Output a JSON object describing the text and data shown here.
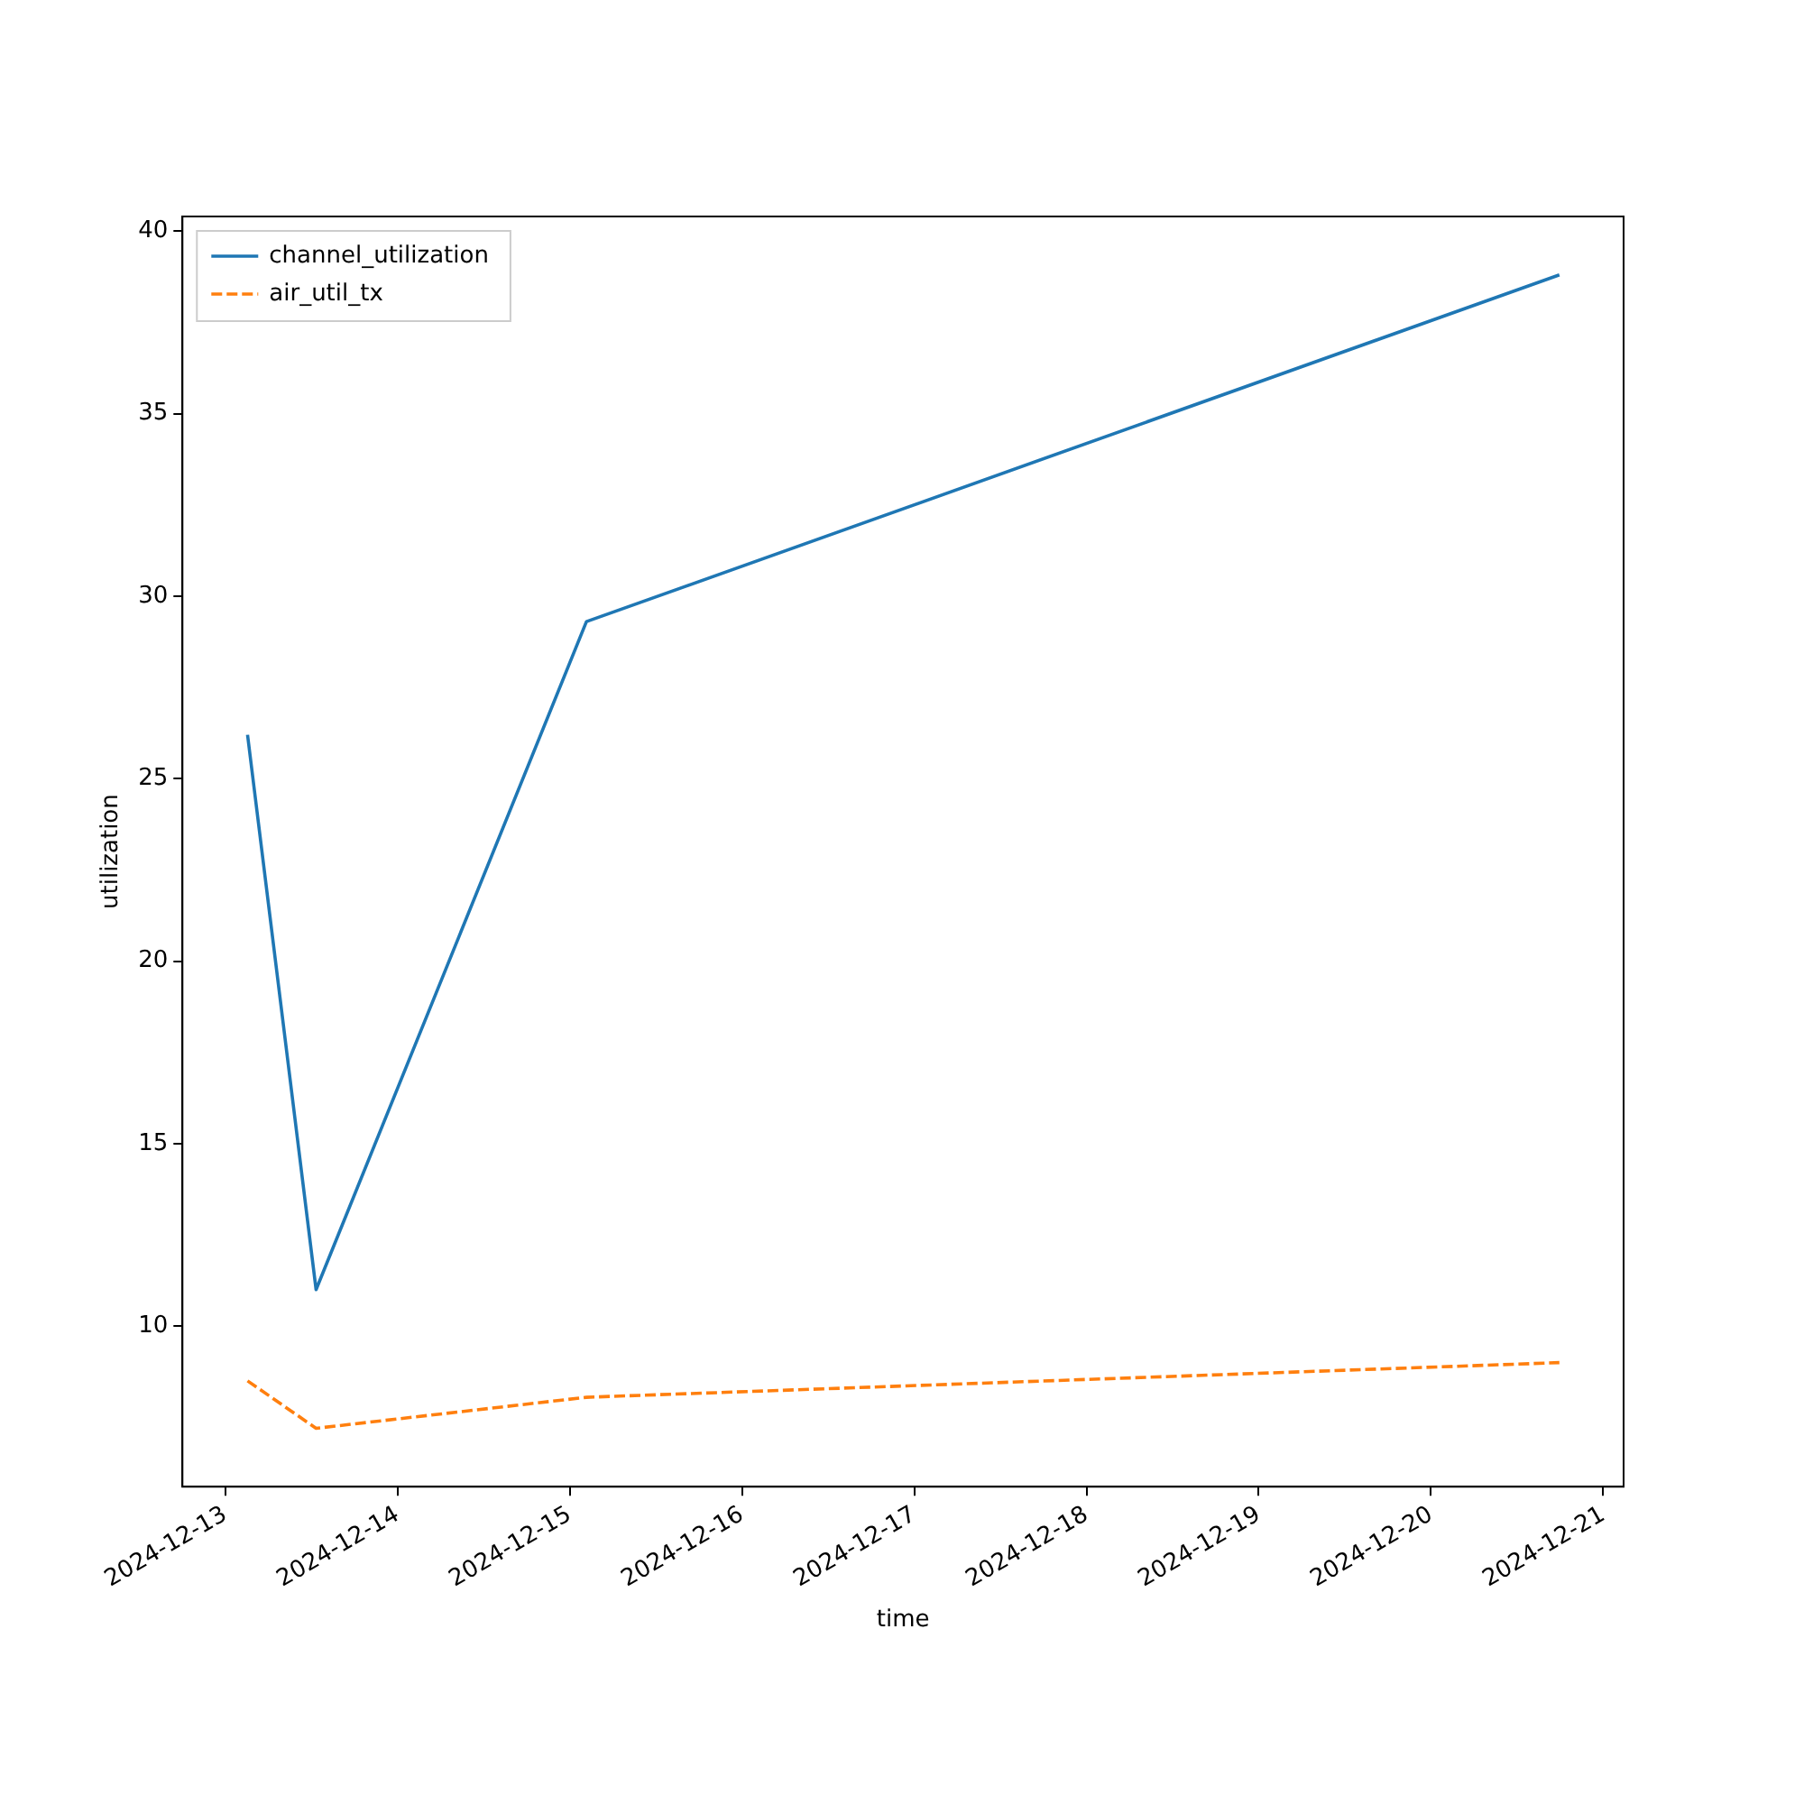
{
  "chart_data": {
    "type": "line",
    "xlabel": "time",
    "ylabel": "utilization",
    "x": [
      "2024-12-13T03:07",
      "2024-12-13T12:40",
      "2024-12-15T02:20",
      "2024-12-20T17:53"
    ],
    "series": [
      {
        "name": "channel_utilization",
        "color": "#1f77b4",
        "line_style": "solid",
        "values": [
          26.2,
          11.0,
          29.3,
          38.8
        ]
      },
      {
        "name": "air_util_tx",
        "color": "#ff7f0e",
        "line_style": "dashed",
        "values": [
          8.5,
          7.2,
          8.05,
          9.0
        ]
      }
    ],
    "xlim": [
      "2024-12-12T18:03",
      "2024-12-21T02:50"
    ],
    "xticks": [
      "2024-12-13",
      "2024-12-14",
      "2024-12-15",
      "2024-12-16",
      "2024-12-17",
      "2024-12-18",
      "2024-12-19",
      "2024-12-20",
      "2024-12-21"
    ],
    "ylim": [
      5.6,
      40.4
    ],
    "yticks": [
      10,
      15,
      20,
      25,
      30,
      35,
      40
    ],
    "grid": false,
    "legend": "top left",
    "marker": "none"
  }
}
